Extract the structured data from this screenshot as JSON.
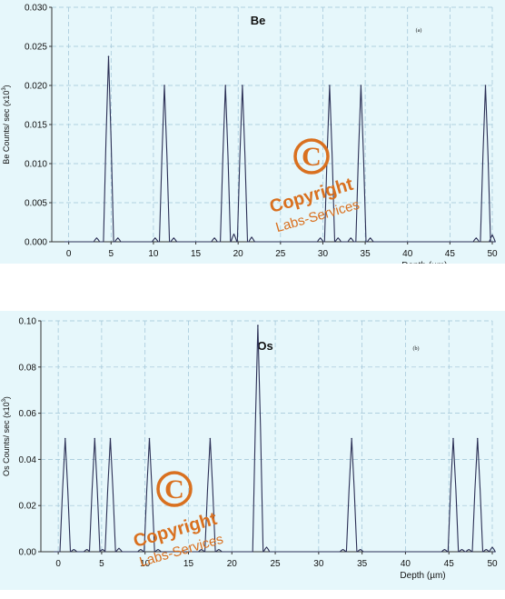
{
  "chart_data": [
    {
      "type": "line",
      "element": "Be",
      "panel_label": "(a)",
      "xlabel": "Depth (µm)",
      "ylabel": "Be Counts/ sec (x10",
      "ylabel_exp": "3",
      "ylabel_close": ")",
      "xlim": [
        -2,
        50
      ],
      "ylim": [
        0,
        0.03
      ],
      "xticks": [
        0,
        5,
        10,
        15,
        20,
        25,
        30,
        35,
        40,
        45,
        50
      ],
      "yticks": [
        0.0,
        0.005,
        0.01,
        0.015,
        0.02,
        0.025,
        0.03
      ],
      "ytick_labels": [
        "0.000",
        "0.005",
        "0.010",
        "0.015",
        "0.020",
        "0.025",
        "0.030"
      ],
      "grid": true,
      "peaks": [
        {
          "x": 4.7,
          "y": 0.0237
        },
        {
          "x": 11.3,
          "y": 0.02
        },
        {
          "x": 18.5,
          "y": 0.02
        },
        {
          "x": 20.5,
          "y": 0.02
        },
        {
          "x": 30.8,
          "y": 0.02
        },
        {
          "x": 34.5,
          "y": 0.02
        },
        {
          "x": 49.2,
          "y": 0.02
        }
      ],
      "small_bumps": [
        {
          "x": 3.3,
          "y": 0.0005
        },
        {
          "x": 5.8,
          "y": 0.0005
        },
        {
          "x": 10.2,
          "y": 0.0005
        },
        {
          "x": 12.4,
          "y": 0.0005
        },
        {
          "x": 17.2,
          "y": 0.0005
        },
        {
          "x": 19.5,
          "y": 0.001
        },
        {
          "x": 21.6,
          "y": 0.0006
        },
        {
          "x": 29.7,
          "y": 0.0005
        },
        {
          "x": 31.8,
          "y": 0.0005
        },
        {
          "x": 33.3,
          "y": 0.0005
        },
        {
          "x": 35.6,
          "y": 0.0005
        },
        {
          "x": 48.1,
          "y": 0.0005
        },
        {
          "x": 50.0,
          "y": 0.0009
        }
      ]
    },
    {
      "type": "line",
      "element": "Os",
      "panel_label": "(b)",
      "xlabel": "Depth (µm)",
      "ylabel": "Os Counts/ sec (x10",
      "ylabel_exp": "3",
      "ylabel_close": ")",
      "xlim": [
        -2,
        50
      ],
      "ylim": [
        0,
        0.1
      ],
      "xticks": [
        0,
        5,
        10,
        15,
        20,
        25,
        30,
        35,
        40,
        45,
        50
      ],
      "yticks": [
        0.0,
        0.02,
        0.04,
        0.06,
        0.08,
        0.1
      ],
      "ytick_labels": [
        "0.00",
        "0.02",
        "0.04",
        "0.06",
        "0.08",
        "0.10"
      ],
      "grid": true,
      "peaks": [
        {
          "x": 0.8,
          "y": 0.049
        },
        {
          "x": 4.2,
          "y": 0.049
        },
        {
          "x": 6.0,
          "y": 0.049
        },
        {
          "x": 10.5,
          "y": 0.049
        },
        {
          "x": 17.5,
          "y": 0.049
        },
        {
          "x": 23.0,
          "y": 0.098
        },
        {
          "x": 33.8,
          "y": 0.049
        },
        {
          "x": 45.5,
          "y": 0.049
        },
        {
          "x": 48.3,
          "y": 0.049
        }
      ],
      "small_bumps": [
        {
          "x": 1.8,
          "y": 0.001
        },
        {
          "x": 3.3,
          "y": 0.001
        },
        {
          "x": 5.1,
          "y": 0.001
        },
        {
          "x": 7.0,
          "y": 0.0015
        },
        {
          "x": 9.5,
          "y": 0.001
        },
        {
          "x": 11.5,
          "y": 0.001
        },
        {
          "x": 16.5,
          "y": 0.001
        },
        {
          "x": 18.5,
          "y": 0.001
        },
        {
          "x": 24.0,
          "y": 0.002
        },
        {
          "x": 32.8,
          "y": 0.001
        },
        {
          "x": 34.8,
          "y": 0.001
        },
        {
          "x": 44.5,
          "y": 0.001
        },
        {
          "x": 46.5,
          "y": 0.001
        },
        {
          "x": 47.3,
          "y": 0.001
        },
        {
          "x": 49.3,
          "y": 0.001
        },
        {
          "x": 50.0,
          "y": 0.002
        }
      ]
    }
  ],
  "watermark": {
    "symbol": "©",
    "line1": "Copyright",
    "line2": "Labs-Services"
  },
  "colors": {
    "background": "#e6f7fb",
    "grid": "#9ec3d6",
    "line": "#2b2f55",
    "watermark": "#d9701f"
  }
}
